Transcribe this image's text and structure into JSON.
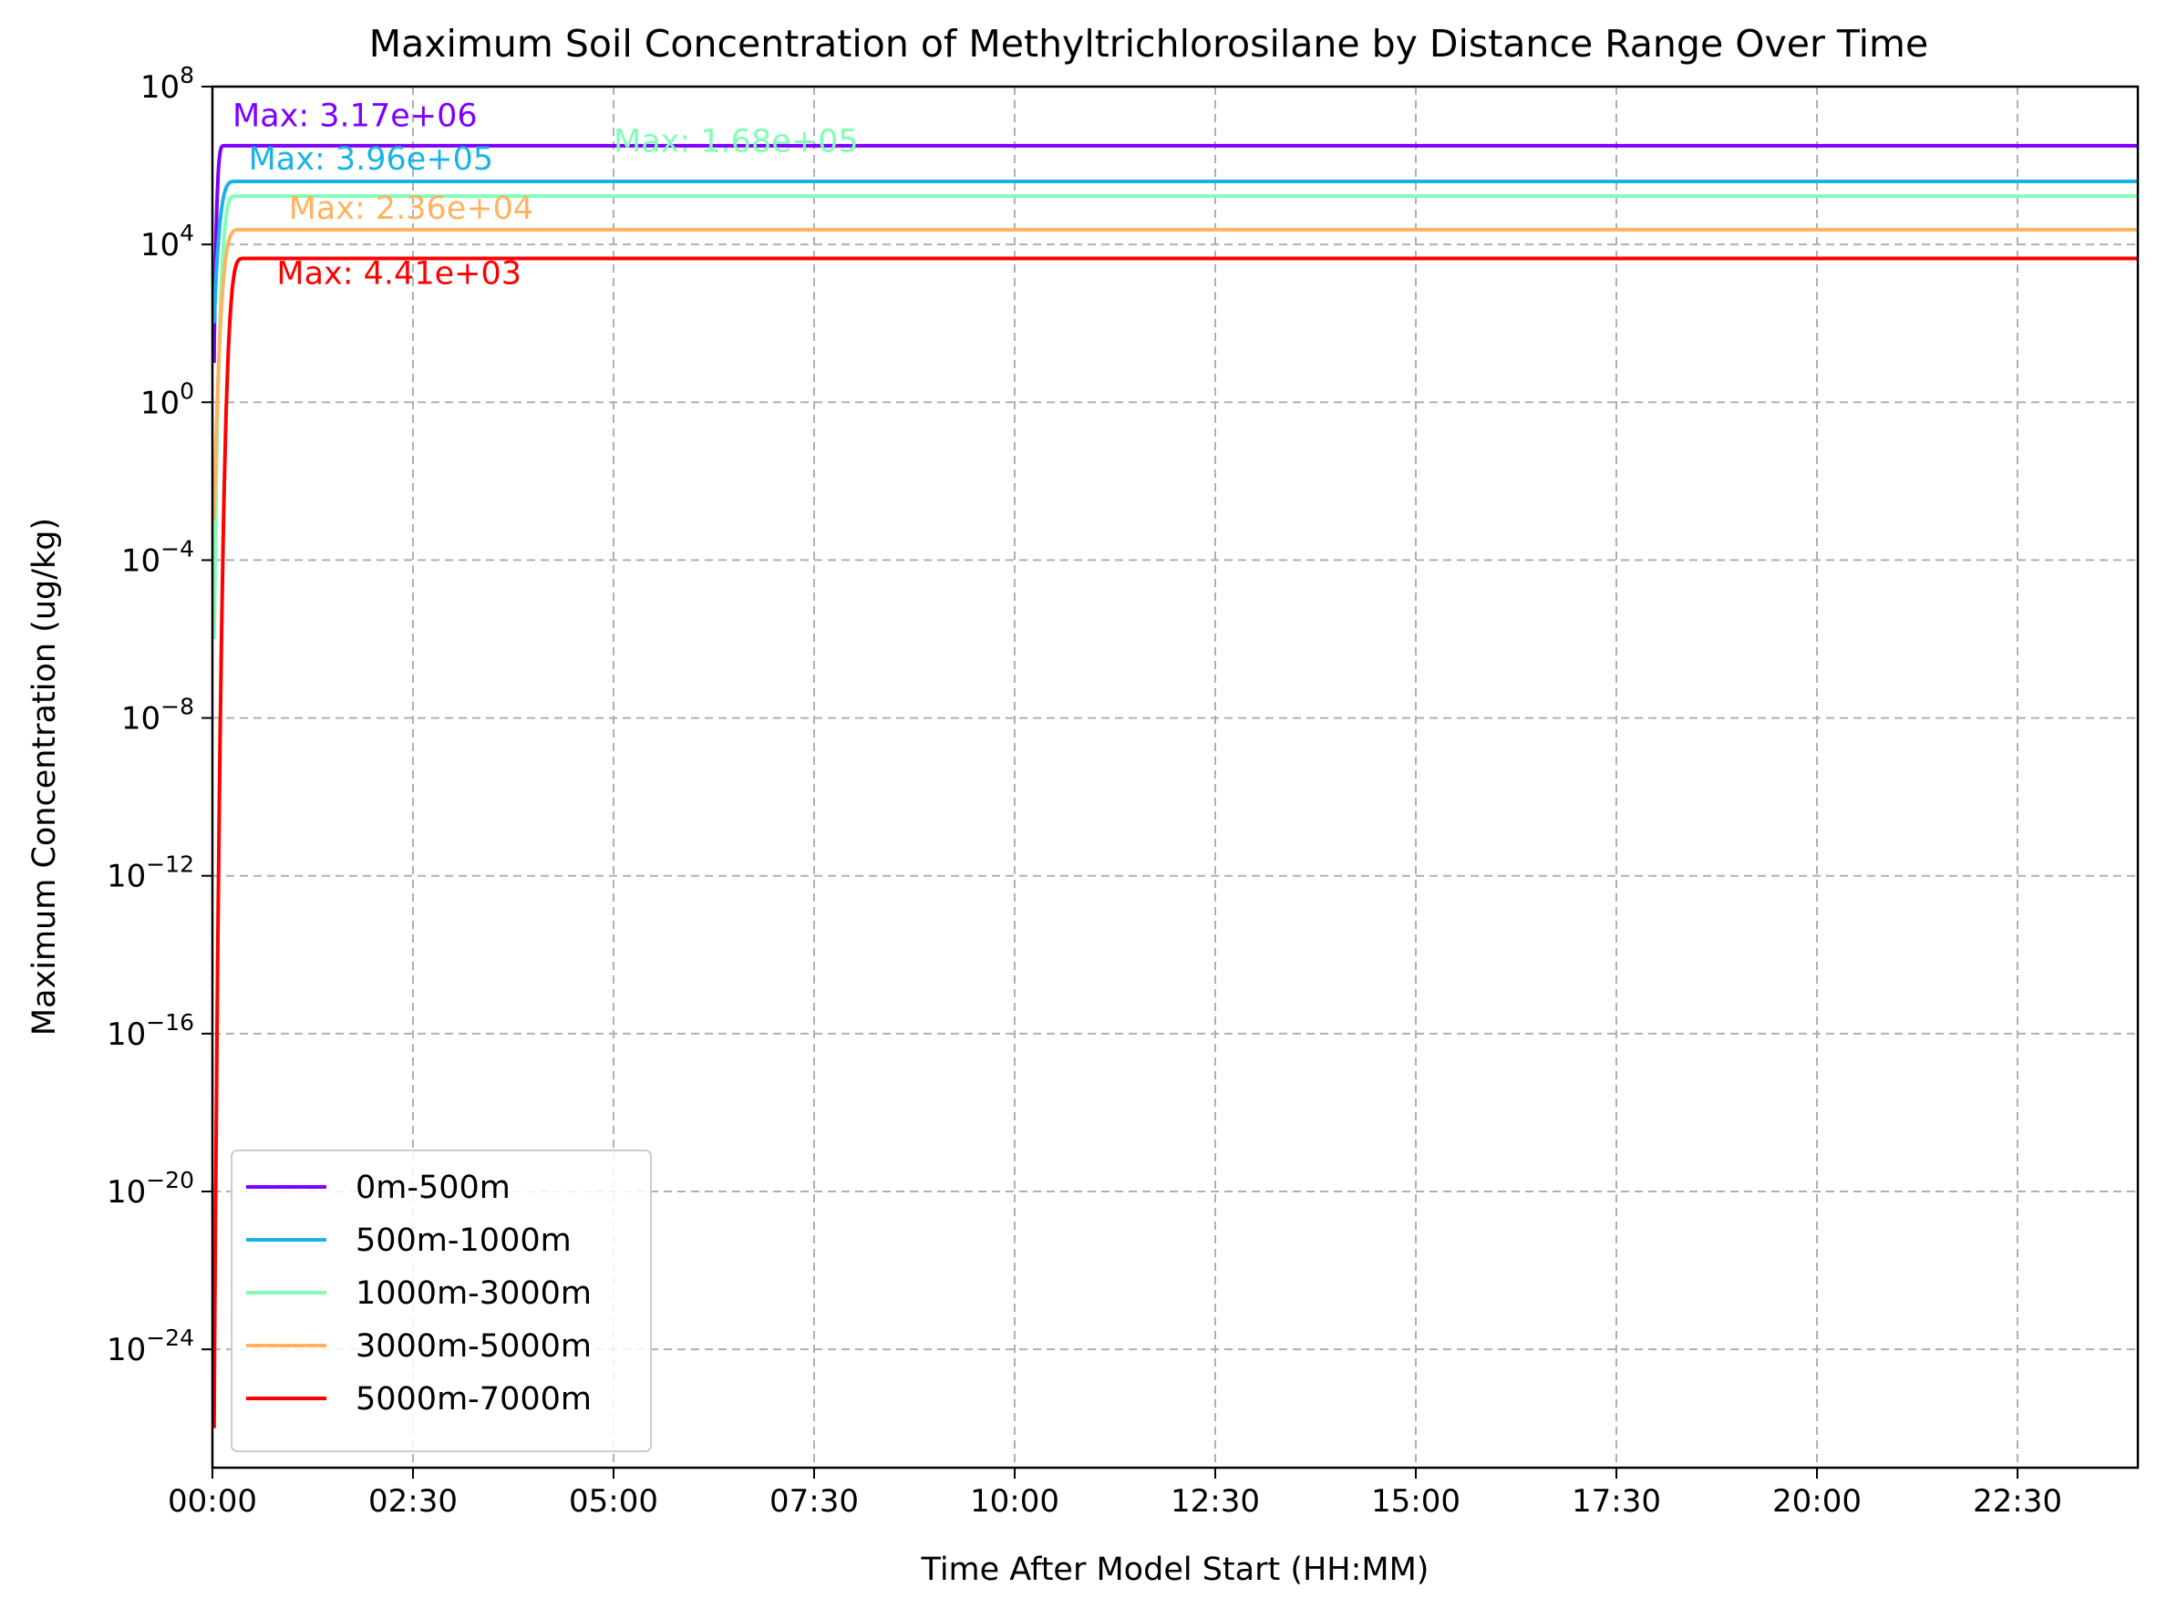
{
  "chart_data": {
    "type": "line",
    "title": "Maximum Soil Concentration of Methyltrichlorosilane by Distance Range Over Time",
    "xlabel": "Time After Model Start (HH:MM)",
    "ylabel": "Maximum Concentration (ug/kg)",
    "yscale": "log",
    "ylim_exponent": [
      -27,
      8
    ],
    "xlim_hours": [
      0,
      24
    ],
    "x_ticks": [
      {
        "hours": 0,
        "label": "00:00"
      },
      {
        "hours": 2.5,
        "label": "02:30"
      },
      {
        "hours": 5,
        "label": "05:00"
      },
      {
        "hours": 7.5,
        "label": "07:30"
      },
      {
        "hours": 10,
        "label": "10:00"
      },
      {
        "hours": 12.5,
        "label": "12:30"
      },
      {
        "hours": 15,
        "label": "15:00"
      },
      {
        "hours": 17.5,
        "label": "17:30"
      },
      {
        "hours": 20,
        "label": "20:00"
      },
      {
        "hours": 22.5,
        "label": "22:30"
      }
    ],
    "y_ticks": [
      {
        "exponent": 8,
        "base": "10",
        "exp_label": "8"
      },
      {
        "exponent": 4,
        "base": "10",
        "exp_label": "4"
      },
      {
        "exponent": 0,
        "base": "10",
        "exp_label": "0"
      },
      {
        "exponent": -4,
        "base": "10",
        "exp_label": "−4"
      },
      {
        "exponent": -8,
        "base": "10",
        "exp_label": "−8"
      },
      {
        "exponent": -12,
        "base": "10",
        "exp_label": "−12"
      },
      {
        "exponent": -16,
        "base": "10",
        "exp_label": "−16"
      },
      {
        "exponent": -20,
        "base": "10",
        "exp_label": "−20"
      },
      {
        "exponent": -24,
        "base": "10",
        "exp_label": "−24"
      }
    ],
    "grid": true,
    "legend_position": "lower-left",
    "series": [
      {
        "name": "0m-500m",
        "color": "#7f00ff",
        "plateau": 3170000.0,
        "rise_end_hours": 0.15,
        "start_value": 10.0,
        "annotation": "Max: 3.17e+06",
        "annotation_at": {
          "hours": 0.25,
          "value": 10000000.0
        }
      },
      {
        "name": "500m-1000m",
        "color": "#1ab3e6",
        "plateau": 396000.0,
        "rise_end_hours": 0.3,
        "start_value": 100.0,
        "annotation": "Max: 3.96e+05",
        "annotation_at": {
          "hours": 0.45,
          "value": 800000.0
        }
      },
      {
        "name": "1000m-3000m",
        "color": "#80ffb4",
        "plateau": 168000.0,
        "rise_end_hours": 0.3,
        "start_value": 1e-06,
        "annotation": "Max: 1.68e+05",
        "annotation_at": {
          "hours": 5.0,
          "value": 2200000.0
        }
      },
      {
        "name": "3000m-5000m",
        "color": "#ffb360",
        "plateau": 23600.0,
        "rise_end_hours": 0.35,
        "start_value": 0.001,
        "annotation": "Max: 2.36e+04",
        "annotation_at": {
          "hours": 0.95,
          "value": 45000.0
        }
      },
      {
        "name": "5000m-7000m",
        "color": "#ff0000",
        "plateau": 4410.0,
        "rise_end_hours": 0.4,
        "start_value": 1e-26,
        "annotation": "Max: 4.41e+03",
        "annotation_at": {
          "hours": 0.8,
          "value": 1000.0
        }
      }
    ]
  }
}
